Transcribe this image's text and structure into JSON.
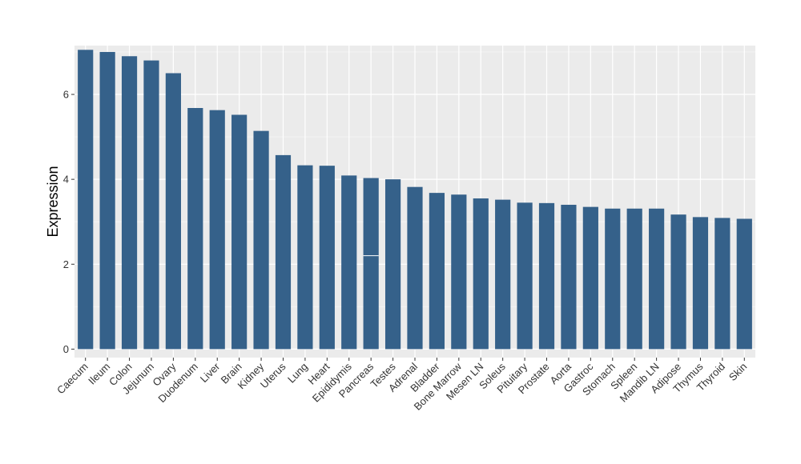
{
  "chart_data": {
    "type": "bar",
    "ylabel": "Expression",
    "xlabel": "",
    "ylim": [
      -0.2,
      7.15
    ],
    "yticks": [
      0,
      2,
      4,
      6
    ],
    "grid": true,
    "colors": {
      "bar": "#35618a",
      "panel": "#ebebeb",
      "grid_major": "#ffffff",
      "grid_minor": "#f5f5f5"
    },
    "categories": [
      "Caecum",
      "Ileum",
      "Colon",
      "Jejunum",
      "Ovary",
      "Duodenum",
      "Liver",
      "Brain",
      "Kidney",
      "Uterus",
      "Lung",
      "Heart",
      "Epididymis",
      "Pancreas",
      "Testes",
      "Adrenal",
      "Bladder",
      "Bone Marrow",
      "Mesen LN",
      "Soleus",
      "Pituitary",
      "Prostate",
      "Aorta",
      "Gastroc",
      "Stomach",
      "Spleen",
      "Mandib LN",
      "Adipose",
      "Thymus",
      "Thyroid",
      "Skin"
    ],
    "values": [
      7.05,
      7.0,
      6.9,
      6.8,
      6.5,
      5.68,
      5.63,
      5.52,
      5.14,
      4.57,
      4.33,
      4.32,
      4.09,
      4.03,
      4.0,
      3.82,
      3.68,
      3.64,
      3.55,
      3.52,
      3.45,
      3.44,
      3.4,
      3.35,
      3.31,
      3.31,
      3.31,
      3.17,
      3.11,
      3.09,
      3.07
    ],
    "markers": [
      {
        "category": "Pancreas",
        "value": 2.2
      }
    ]
  }
}
